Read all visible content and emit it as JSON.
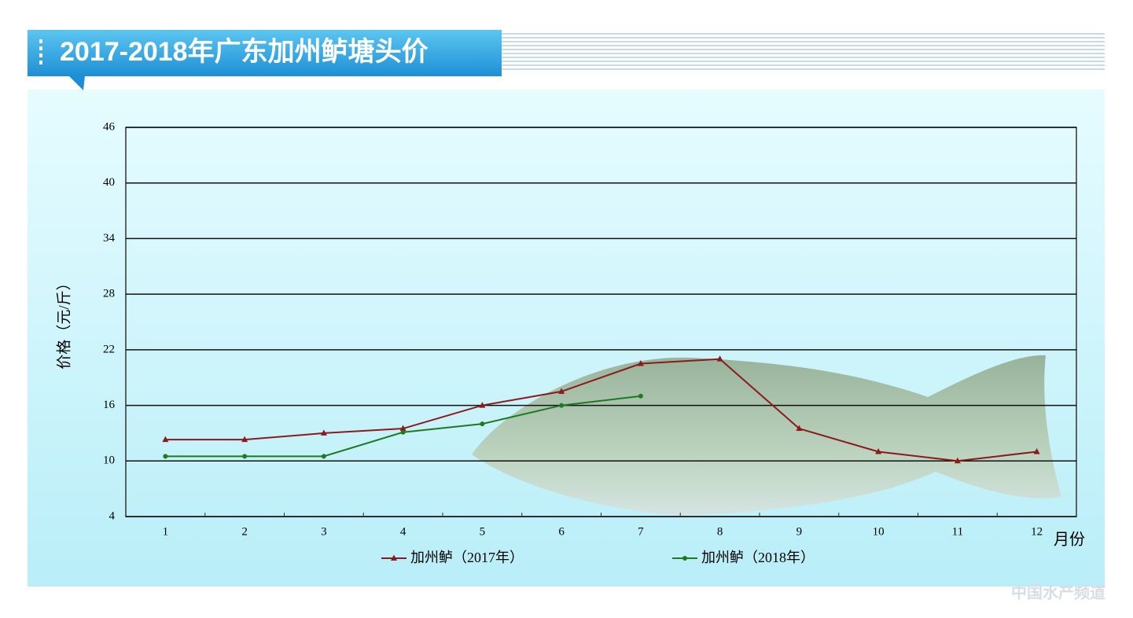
{
  "chart_data": {
    "type": "line",
    "title": "2017-2018年广东加州鲈塘头价",
    "y_label": "价格（元/斤）",
    "x_label": "月份",
    "categories": [
      "1",
      "2",
      "3",
      "4",
      "5",
      "6",
      "7",
      "8",
      "9",
      "10",
      "11",
      "12"
    ],
    "series": [
      {
        "name": "加州鲈（2017年）",
        "color": "#8b1a1a",
        "marker": "triangle",
        "values": [
          12.3,
          12.3,
          13.0,
          13.5,
          16.0,
          17.5,
          20.5,
          21.0,
          13.5,
          11.0,
          10.0,
          11.0
        ]
      },
      {
        "name": "加州鲈（2018年）",
        "color": "#1f7a1f",
        "marker": "circle",
        "values": [
          10.5,
          10.5,
          10.5,
          13.1,
          14.0,
          16.0,
          17.0,
          null,
          null,
          null,
          null,
          null
        ]
      }
    ],
    "ylim": [
      4,
      46
    ],
    "yticks": [
      4,
      10,
      16,
      22,
      28,
      34,
      40,
      46
    ],
    "grid": true,
    "watermark": "中国水产频道"
  }
}
